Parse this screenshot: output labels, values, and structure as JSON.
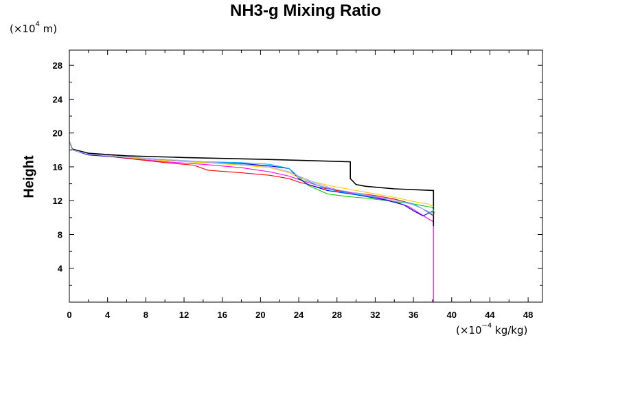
{
  "chart_data": {
    "type": "line",
    "title": "NH3-g Mixing Ratio",
    "ylabel": "Height",
    "y_unit": {
      "prefix": "(×10",
      "exp": "4",
      "suffix": " m)"
    },
    "x_unit": {
      "prefix": "(×10",
      "exp": "−4",
      "suffix": " kg/kg)"
    },
    "xlim": [
      0,
      49.5
    ],
    "ylim": [
      0,
      29.8
    ],
    "x_ticks": [
      0,
      4,
      8,
      12,
      16,
      20,
      24,
      28,
      32,
      36,
      40,
      44,
      48
    ],
    "y_ticks": [
      4,
      8,
      12,
      16,
      20,
      24,
      28
    ],
    "grid": false,
    "series": [
      {
        "color": "#ff00ff",
        "points": [
          [
            0,
            29.8
          ],
          [
            0,
            19
          ],
          [
            0.3,
            18.1
          ],
          [
            2,
            17.5
          ],
          [
            6,
            17
          ],
          [
            10,
            16.6
          ],
          [
            14,
            16.3
          ],
          [
            18,
            15.9
          ],
          [
            21,
            15.4
          ],
          [
            23,
            14.9
          ],
          [
            24,
            14.5
          ],
          [
            26,
            13.8
          ],
          [
            28,
            13.2
          ],
          [
            30,
            12.8
          ],
          [
            32,
            12.4
          ],
          [
            34,
            11.9
          ],
          [
            35.5,
            11.3
          ],
          [
            36.5,
            10.6
          ],
          [
            37.5,
            9.9
          ],
          [
            38.1,
            9.5
          ],
          [
            38.1,
            0
          ]
        ]
      },
      {
        "color": "#000000",
        "points": [
          [
            0,
            19
          ],
          [
            0.3,
            18.1
          ],
          [
            2,
            17.6
          ],
          [
            6,
            17.3
          ],
          [
            12,
            17.1
          ],
          [
            20,
            16.9
          ],
          [
            29.4,
            16.6
          ],
          [
            29.4,
            14.6
          ],
          [
            30,
            13.9
          ],
          [
            31,
            13.7
          ],
          [
            34,
            13.4
          ],
          [
            38.1,
            13.2
          ],
          [
            38.1,
            9
          ]
        ]
      },
      {
        "color": "#ff0000",
        "points": [
          [
            0,
            19
          ],
          [
            0.3,
            18
          ],
          [
            2,
            17.5
          ],
          [
            6,
            17
          ],
          [
            10,
            16.5
          ],
          [
            13,
            16.2
          ],
          [
            14.5,
            15.6
          ],
          [
            18,
            15.3
          ],
          [
            21,
            15.0
          ],
          [
            23,
            14.6
          ],
          [
            24,
            14.2
          ],
          [
            26,
            13.6
          ],
          [
            28,
            13.2
          ],
          [
            30,
            12.9
          ],
          [
            32,
            12.6
          ],
          [
            34,
            12.2
          ],
          [
            36,
            11.6
          ],
          [
            37,
            11.0
          ],
          [
            38.1,
            10.2
          ]
        ]
      },
      {
        "color": "#00cc00",
        "points": [
          [
            0,
            19
          ],
          [
            0.3,
            18
          ],
          [
            2,
            17.5
          ],
          [
            8,
            16.9
          ],
          [
            14,
            16.5
          ],
          [
            18,
            16.3
          ],
          [
            21,
            16.1
          ],
          [
            23,
            15.8
          ],
          [
            24,
            14.8
          ],
          [
            25,
            13.8
          ],
          [
            27,
            12.8
          ],
          [
            29,
            12.5
          ],
          [
            31,
            12.3
          ],
          [
            34,
            11.9
          ],
          [
            36,
            11.6
          ],
          [
            38,
            11.2
          ],
          [
            38.2,
            10.5
          ]
        ]
      },
      {
        "color": "#0000ff",
        "points": [
          [
            0,
            19
          ],
          [
            0.3,
            18
          ],
          [
            2,
            17.4
          ],
          [
            8,
            16.9
          ],
          [
            14,
            16.6
          ],
          [
            18,
            16.4
          ],
          [
            21,
            16.1
          ],
          [
            23,
            15.8
          ],
          [
            24,
            14.6
          ],
          [
            25,
            13.9
          ],
          [
            27,
            13.2
          ],
          [
            30,
            12.7
          ],
          [
            33,
            12.1
          ],
          [
            35,
            11.5
          ],
          [
            36,
            10.8
          ],
          [
            37,
            10.2
          ],
          [
            38.1,
            10.8
          ]
        ]
      },
      {
        "color": "#00bbff",
        "points": [
          [
            0,
            19
          ],
          [
            0.3,
            18
          ],
          [
            2,
            17.5
          ],
          [
            8,
            17
          ],
          [
            14,
            16.6
          ],
          [
            18,
            16.5
          ],
          [
            21,
            16.3
          ],
          [
            23,
            15.8
          ],
          [
            24,
            14.8
          ],
          [
            26,
            13.8
          ],
          [
            28,
            13.1
          ],
          [
            31,
            12.6
          ],
          [
            34,
            12.1
          ],
          [
            36,
            11.6
          ],
          [
            37,
            11.0
          ],
          [
            38.1,
            10.3
          ]
        ]
      },
      {
        "color": "#ffcc00",
        "points": [
          [
            0,
            19
          ],
          [
            0.3,
            18
          ],
          [
            2,
            17.5
          ],
          [
            8,
            16.9
          ],
          [
            14,
            16.5
          ],
          [
            18,
            16.2
          ],
          [
            21,
            15.9
          ],
          [
            23,
            15.3
          ],
          [
            24,
            14.7
          ],
          [
            26,
            14.1
          ],
          [
            28,
            13.6
          ],
          [
            31,
            13.0
          ],
          [
            34,
            12.4
          ],
          [
            36,
            11.9
          ],
          [
            37.5,
            11.6
          ],
          [
            38.1,
            11.3
          ]
        ]
      },
      {
        "color": "#aaaaff",
        "points": [
          [
            0,
            19
          ],
          [
            0.3,
            18
          ],
          [
            2,
            17.5
          ],
          [
            8,
            17
          ],
          [
            14,
            16.6
          ],
          [
            18,
            16.3
          ],
          [
            21,
            16.0
          ],
          [
            23,
            15.4
          ],
          [
            24,
            14.9
          ],
          [
            26,
            14.0
          ],
          [
            28,
            13.3
          ],
          [
            31,
            12.7
          ],
          [
            34,
            12.1
          ],
          [
            36,
            11.5
          ],
          [
            37,
            11.0
          ],
          [
            38.1,
            10.5
          ]
        ]
      }
    ]
  }
}
